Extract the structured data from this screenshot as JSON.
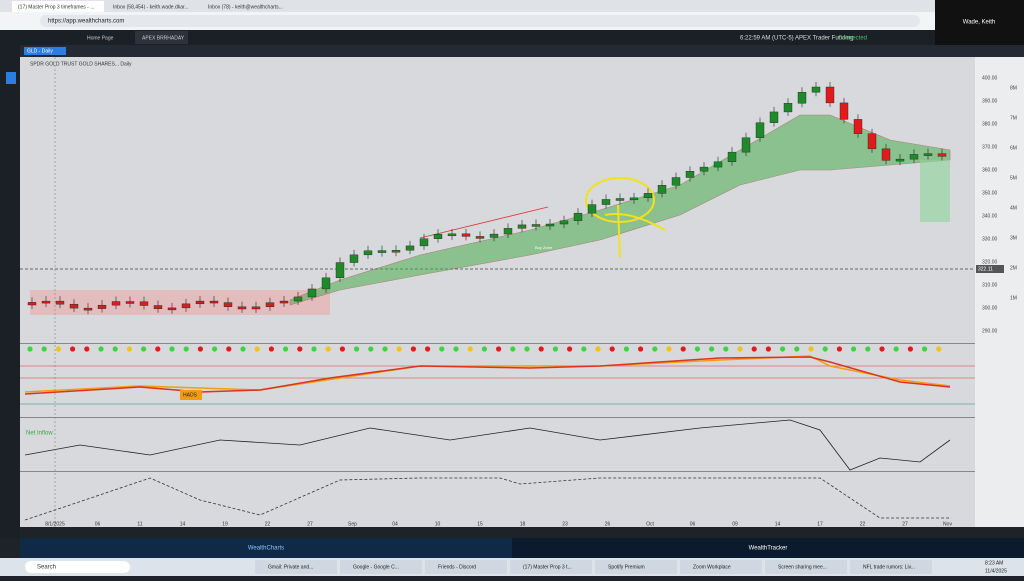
{
  "browser": {
    "tabs": [
      "(17) Master Prop 3 timeframes - ...",
      "Inbox (58,454) - keith.wade.dkar...",
      "Inbox (78) - keith@wealthcharts..."
    ],
    "url": "https://app.wealthcharts.com",
    "user": "Wade, Keith"
  },
  "app": {
    "tabs": [
      "Home Page",
      "APEX BRRHADAY"
    ],
    "time": "6:22:59 AM (UTC-5)",
    "broker": "APEX Trader Funding",
    "status": "Connected",
    "symbol": "GLD - Daily",
    "chart_title": "SPDR GOLD TRUST GOLD SHARES... Daily",
    "price_axis": [
      "400.00",
      "390.00",
      "380.00",
      "370.00",
      "360.00",
      "350.00",
      "340.00",
      "330.00",
      "320.00",
      "310.00",
      "300.00",
      "290.00"
    ],
    "volume_axis": [
      "8M",
      "7M",
      "6M",
      "5M",
      "4M",
      "3M",
      "2M",
      "1M"
    ],
    "date_axis": [
      "8/1/2025",
      "06",
      "11",
      "14",
      "19",
      "22",
      "27",
      "Sep",
      "04",
      "10",
      "15",
      "18",
      "23",
      "26",
      "Oct",
      "06",
      "09",
      "14",
      "17",
      "22",
      "27",
      "Nov"
    ],
    "current_price": "322.11",
    "labels": {
      "hads": "HADS",
      "net_inflow": "Net Inflow",
      "buy_zone": "Buy Zone"
    },
    "footer": [
      "WealthCharts",
      "WealthTracker"
    ]
  },
  "taskbar": {
    "search": "Search",
    "apps": [
      "Gmail: Private and...",
      "Google - Google C...",
      "Friends - Discord",
      "(17) Master Prop 3 t...",
      "Spotify Premium",
      "Zoom Workplace",
      "Screen sharing mee...",
      "NFL trade rumors: Liv..."
    ],
    "time": "8:23 AM",
    "date": "11/4/2025"
  }
}
